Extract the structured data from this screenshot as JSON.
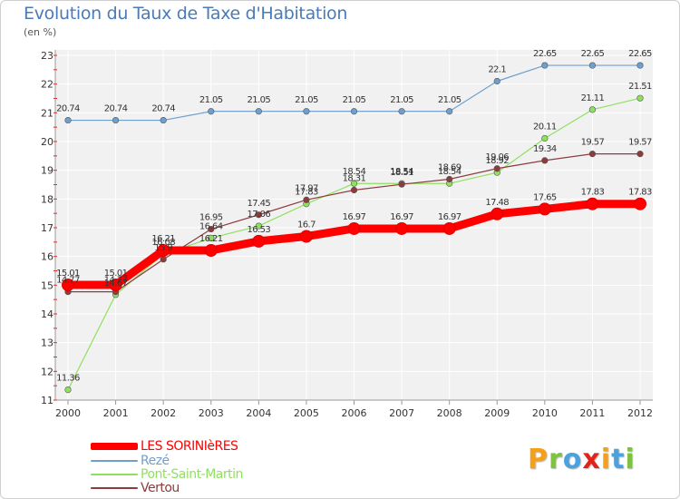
{
  "chart_data": {
    "type": "line",
    "title": "Evolution du Taux de Taxe d'Habitation",
    "subtitle": "(en %)",
    "categories": [
      "2000",
      "2001",
      "2002",
      "2003",
      "2004",
      "2005",
      "2006",
      "2007",
      "2008",
      "2009",
      "2010",
      "2011",
      "2012"
    ],
    "ylim": [
      11,
      23
    ],
    "yticks": [
      11,
      12,
      13,
      14,
      15,
      16,
      17,
      18,
      19,
      20,
      21,
      22,
      23
    ],
    "grid": true,
    "legend_position": "bottom-left",
    "series": [
      {
        "name": "LES SORINIèRES",
        "color": "#ff0000",
        "values": [
          15.01,
          15.01,
          16.21,
          16.21,
          16.53,
          16.7,
          16.97,
          16.97,
          16.97,
          17.48,
          17.65,
          17.83,
          17.83
        ],
        "labels": [
          "15.01",
          "15.01",
          "16.21",
          "16.21",
          "16.53",
          "16.7",
          "16.97",
          "16.97",
          "16.97",
          "17.48",
          "17.65",
          "17.83",
          "17.83"
        ]
      },
      {
        "name": "Rezé",
        "color": "#6f9fce",
        "values": [
          20.74,
          20.74,
          20.74,
          21.05,
          21.05,
          21.05,
          21.05,
          21.05,
          21.05,
          22.1,
          22.65,
          22.65,
          22.65
        ],
        "labels": [
          "20.74",
          "20.74",
          "20.74",
          "21.05",
          "21.05",
          "21.05",
          "21.05",
          "21.05",
          "21.05",
          "22.1",
          "22.65",
          "22.65",
          "22.65"
        ]
      },
      {
        "name": "Pont-Saint-Martin",
        "color": "#90e060",
        "values": [
          11.36,
          14.67,
          16.08,
          16.64,
          17.06,
          17.83,
          18.54,
          18.54,
          18.54,
          18.92,
          20.11,
          21.11,
          21.51
        ],
        "labels": [
          "11.36",
          "14.67",
          "16.08",
          "16.64",
          "17.06",
          "17.83",
          "18.54",
          "18.54",
          "18.54",
          "18.92",
          "20.11",
          "21.11",
          "21.51"
        ]
      },
      {
        "name": "Vertou",
        "color": "#8c3c3c",
        "values": [
          14.77,
          14.77,
          15.9,
          16.95,
          17.45,
          17.97,
          18.31,
          18.51,
          18.69,
          19.06,
          19.34,
          19.57,
          19.57
        ],
        "labels": [
          "14.77",
          "14.77",
          "15.9",
          "16.95",
          "17.45",
          "17.97",
          "18.31",
          "18.51",
          "18.69",
          "19.06",
          "19.34",
          "19.57",
          "19.57"
        ]
      }
    ]
  },
  "logo": {
    "text": "Proxiti",
    "letter_colors": [
      "#f6a01a",
      "#7fc241",
      "#4aa3df",
      "#e2231a",
      "#f6a01a",
      "#4aa3df",
      "#7fc241"
    ]
  }
}
